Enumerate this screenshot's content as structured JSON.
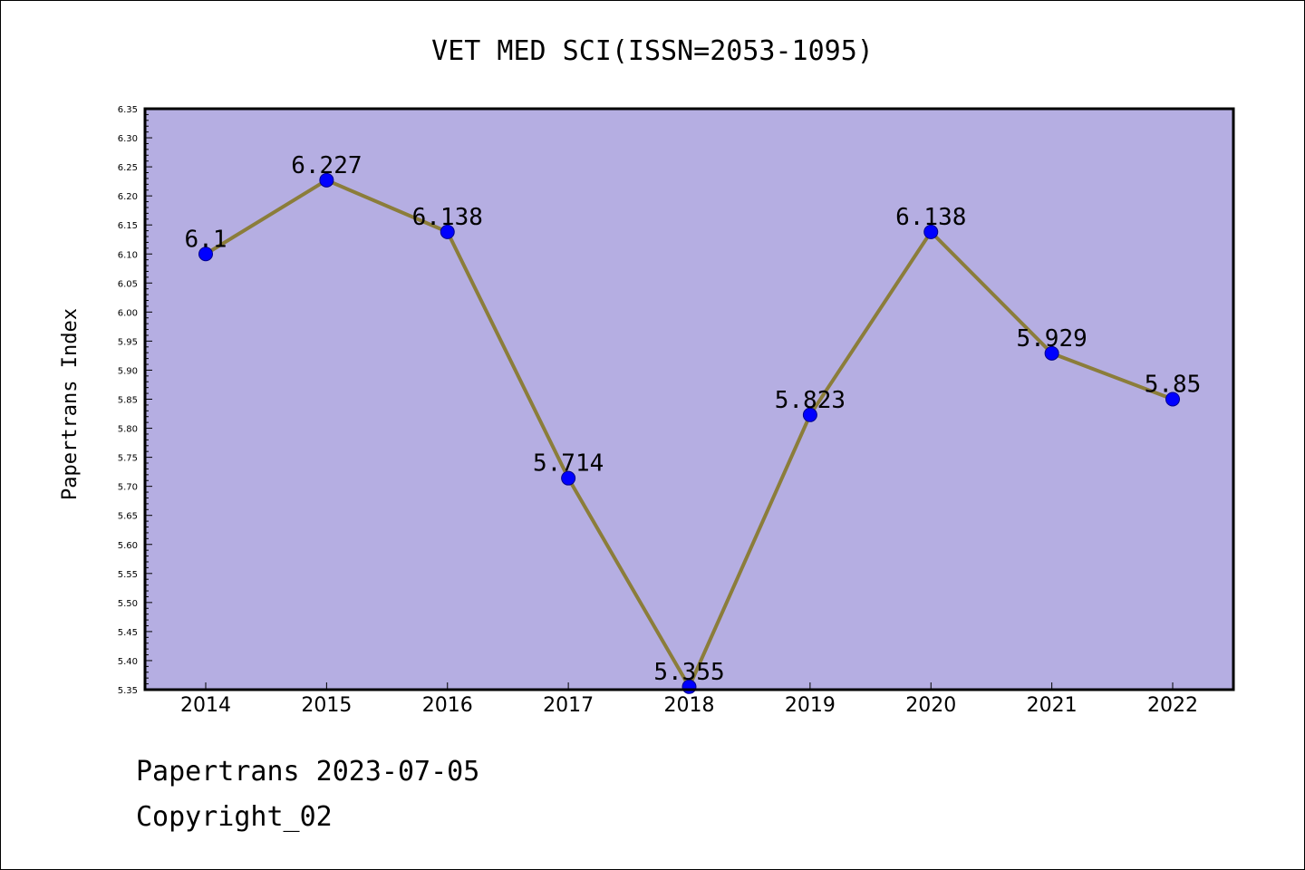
{
  "chart_data": {
    "type": "line",
    "title": "VET MED SCI(ISSN=2053-1095)",
    "xlabel": "",
    "ylabel": "Papertrans Index",
    "categories": [
      "2014",
      "2015",
      "2016",
      "2017",
      "2018",
      "2019",
      "2020",
      "2021",
      "2022"
    ],
    "series": [
      {
        "values": [
          6.1,
          6.227,
          6.138,
          5.714,
          5.355,
          5.823,
          6.138,
          5.929,
          5.85
        ],
        "labels": [
          "6.1",
          "6.227",
          "6.138",
          "5.714",
          "5.355",
          "5.823",
          "6.138",
          "5.929",
          "5.85"
        ]
      }
    ],
    "ylim": [
      5.35,
      6.35
    ],
    "yticks": [
      "5.35",
      "5.40",
      "5.45",
      "5.50",
      "5.55",
      "5.60",
      "5.65",
      "5.70",
      "5.75",
      "5.80",
      "5.85",
      "5.90",
      "5.95",
      "6.00",
      "6.05",
      "6.10",
      "6.15",
      "6.20",
      "6.25",
      "6.30",
      "6.35"
    ],
    "grid": false,
    "legend": "none",
    "colors": {
      "plot_background": "#b5aee2",
      "line": "#8b7d3a",
      "marker": "#0000ff",
      "marker_edge": "#00008b"
    }
  },
  "footer": {
    "date": "Papertrans 2023-07-05",
    "copyright": "Copyright_02"
  }
}
